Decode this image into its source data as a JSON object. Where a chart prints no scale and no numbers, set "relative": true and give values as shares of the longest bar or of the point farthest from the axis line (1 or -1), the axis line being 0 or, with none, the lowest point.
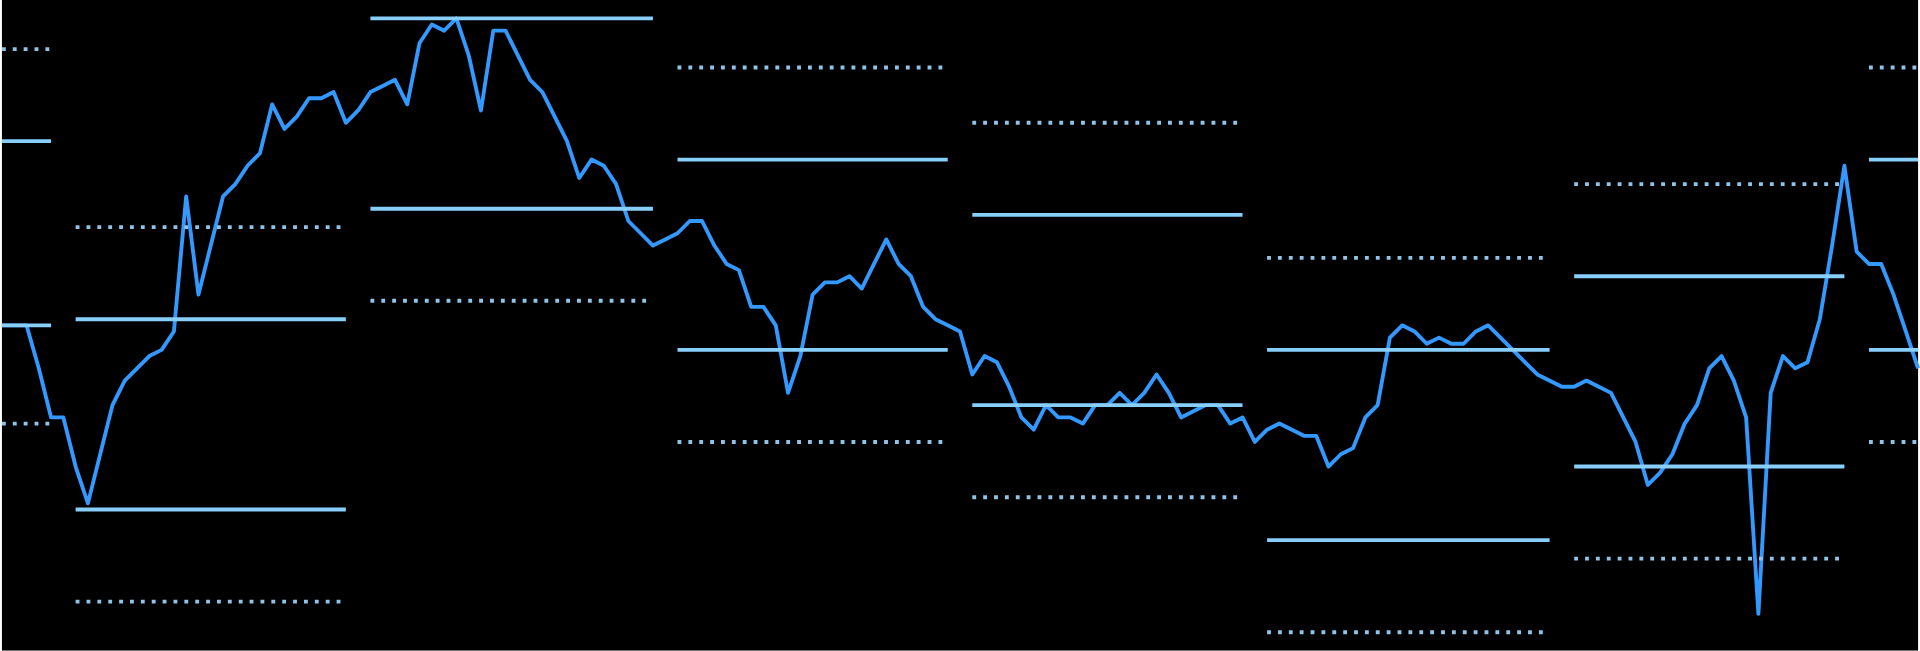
{
  "chart_data": {
    "type": "line",
    "relative": true,
    "categories": [
      null,
      null,
      null,
      null,
      null,
      null,
      null,
      null,
      null,
      null,
      null,
      null,
      null,
      null,
      null,
      null,
      null,
      null,
      null,
      null,
      null,
      null,
      null,
      null,
      null,
      null,
      null,
      null,
      null,
      null,
      null,
      null,
      null,
      null,
      null,
      null,
      null,
      null,
      null,
      null,
      null,
      null,
      null,
      null,
      null,
      null,
      null,
      null,
      null,
      null,
      null,
      null,
      null,
      null,
      null,
      null,
      null,
      null,
      null,
      null,
      null,
      null,
      null,
      null,
      null,
      null,
      null,
      null,
      null,
      null,
      null,
      null,
      null,
      null,
      null,
      null,
      null,
      null,
      null,
      null,
      null,
      null,
      null,
      null,
      null,
      null,
      null,
      null,
      null,
      null,
      null,
      null,
      null,
      null,
      null,
      null,
      null,
      null,
      null,
      null,
      null,
      null,
      null,
      null,
      null,
      null,
      null,
      null,
      null,
      null,
      null,
      null,
      null,
      null,
      null,
      null,
      null,
      null,
      null,
      null,
      null,
      null,
      null,
      null,
      null,
      null,
      null,
      null,
      null,
      null,
      null,
      null,
      null,
      null,
      null,
      null,
      null,
      null,
      null,
      null,
      null,
      null,
      null,
      null,
      null,
      null,
      null,
      null,
      null,
      null,
      null,
      null,
      null,
      null,
      null,
      null,
      null
    ],
    "series": [
      {
        "color": "#3399ff",
        "line_style": "solid",
        "values": [
          0.5,
          0.5,
          0.5,
          0.43,
          0.35,
          0.35,
          0.27,
          0.21,
          0.29,
          0.37,
          0.41,
          0.43,
          0.45,
          0.46,
          0.49,
          0.71,
          0.55,
          0.63,
          0.71,
          0.73,
          0.76,
          0.78,
          0.86,
          0.82,
          0.84,
          0.87,
          0.87,
          0.88,
          0.83,
          0.85,
          0.88,
          0.89,
          0.9,
          0.86,
          0.96,
          0.99,
          0.98,
          1.0,
          0.94,
          0.85,
          0.98,
          0.98,
          0.94,
          0.9,
          0.88,
          0.84,
          0.8,
          0.74,
          0.77,
          0.76,
          0.73,
          0.67,
          0.65,
          0.63,
          0.64,
          0.65,
          0.67,
          0.67,
          0.63,
          0.6,
          0.59,
          0.53,
          0.53,
          0.5,
          0.39,
          0.45,
          0.55,
          0.57,
          0.57,
          0.58,
          0.56,
          0.6,
          0.64,
          0.6,
          0.58,
          0.53,
          0.51,
          0.5,
          0.49,
          0.42,
          0.45,
          0.44,
          0.4,
          0.35,
          0.33,
          0.37,
          0.35,
          0.35,
          0.34,
          0.37,
          0.37,
          0.39,
          0.37,
          0.39,
          0.42,
          0.39,
          0.35,
          0.36,
          0.37,
          0.37,
          0.34,
          0.35,
          0.31,
          0.33,
          0.34,
          0.33,
          0.32,
          0.32,
          0.27,
          0.29,
          0.3,
          0.35,
          0.37,
          0.48,
          0.5,
          0.49,
          0.47,
          0.48,
          0.47,
          0.47,
          0.49,
          0.5,
          0.48,
          0.46,
          0.44,
          0.42,
          0.41,
          0.4,
          0.4,
          0.41,
          0.4,
          0.39,
          0.35,
          0.31,
          0.24,
          0.26,
          0.29,
          0.34,
          0.37,
          0.43,
          0.45,
          0.41,
          0.35,
          0.03,
          0.39,
          0.45,
          0.43,
          0.44,
          0.51,
          0.63,
          0.76,
          0.62,
          0.6,
          0.6,
          0.55,
          0.49,
          0.43
        ]
      },
      {
        "color": "#8fc4e8",
        "line_style": "dotted",
        "values": [
          0.95,
          0.95,
          0.95,
          0.95,
          0.95,
          null,
          0.66,
          0.66,
          0.66,
          0.66,
          0.66,
          0.66,
          0.66,
          0.66,
          0.66,
          0.66,
          0.66,
          0.66,
          0.66,
          0.66,
          0.66,
          0.66,
          0.66,
          0.66,
          0.66,
          0.66,
          0.66,
          0.66,
          0.66,
          null,
          null,
          null,
          null,
          null,
          null,
          null,
          null,
          null,
          null,
          null,
          null,
          null,
          null,
          null,
          null,
          null,
          null,
          null,
          null,
          null,
          null,
          null,
          null,
          null,
          null,
          0.92,
          0.92,
          0.92,
          0.92,
          0.92,
          0.92,
          0.92,
          0.92,
          0.92,
          0.92,
          0.92,
          0.92,
          0.92,
          0.92,
          0.92,
          0.92,
          0.92,
          0.92,
          0.92,
          0.92,
          0.92,
          0.92,
          0.92,
          null,
          0.83,
          0.83,
          0.83,
          0.83,
          0.83,
          0.83,
          0.83,
          0.83,
          0.83,
          0.83,
          0.83,
          0.83,
          0.83,
          0.83,
          0.83,
          0.83,
          0.83,
          0.83,
          0.83,
          0.83,
          0.83,
          0.83,
          0.83,
          null,
          0.61,
          0.61,
          0.61,
          0.61,
          0.61,
          0.61,
          0.61,
          0.61,
          0.61,
          0.61,
          0.61,
          0.61,
          0.61,
          0.61,
          0.61,
          0.61,
          0.61,
          0.61,
          0.61,
          0.61,
          0.61,
          0.61,
          0.61,
          0.61,
          null,
          0.73,
          0.73,
          0.73,
          0.73,
          0.73,
          0.73,
          0.73,
          0.73,
          0.73,
          0.73,
          0.73,
          0.73,
          0.73,
          0.73,
          0.73,
          0.73,
          0.73,
          0.73,
          0.73,
          0.73,
          0.73,
          0.73,
          0.73,
          null,
          0.92,
          0.92,
          0.92,
          0.92,
          0.92
        ]
      },
      {
        "color": "#87cefa",
        "line_style": "solid",
        "values": [
          0.8,
          0.8,
          0.8,
          0.8,
          0.8,
          null,
          0.51,
          0.51,
          0.51,
          0.51,
          0.51,
          0.51,
          0.51,
          0.51,
          0.51,
          0.51,
          0.51,
          0.51,
          0.51,
          0.51,
          0.51,
          0.51,
          0.51,
          0.51,
          0.51,
          0.51,
          0.51,
          0.51,
          0.51,
          null,
          1.0,
          1.0,
          1.0,
          1.0,
          1.0,
          1.0,
          1.0,
          1.0,
          1.0,
          1.0,
          1.0,
          1.0,
          1.0,
          1.0,
          1.0,
          1.0,
          1.0,
          1.0,
          1.0,
          1.0,
          1.0,
          1.0,
          1.0,
          1.0,
          null,
          0.77,
          0.77,
          0.77,
          0.77,
          0.77,
          0.77,
          0.77,
          0.77,
          0.77,
          0.77,
          0.77,
          0.77,
          0.77,
          0.77,
          0.77,
          0.77,
          0.77,
          0.77,
          0.77,
          0.77,
          0.77,
          0.77,
          0.77,
          null,
          0.68,
          0.68,
          0.68,
          0.68,
          0.68,
          0.68,
          0.68,
          0.68,
          0.68,
          0.68,
          0.68,
          0.68,
          0.68,
          0.68,
          0.68,
          0.68,
          0.68,
          0.68,
          0.68,
          0.68,
          0.68,
          0.68,
          0.68,
          null,
          0.46,
          0.46,
          0.46,
          0.46,
          0.46,
          0.46,
          0.46,
          0.46,
          0.46,
          0.46,
          0.46,
          0.46,
          0.46,
          0.46,
          0.46,
          0.46,
          0.46,
          0.46,
          0.46,
          0.46,
          0.46,
          0.46,
          0.46,
          0.46,
          null,
          0.58,
          0.58,
          0.58,
          0.58,
          0.58,
          0.58,
          0.58,
          0.58,
          0.58,
          0.58,
          0.58,
          0.58,
          0.58,
          0.58,
          0.58,
          0.58,
          0.58,
          0.58,
          0.58,
          0.58,
          0.58,
          0.58,
          0.58,
          null,
          0.77,
          0.77,
          0.77,
          0.77,
          0.77
        ]
      },
      {
        "color": "#87cefa",
        "line_style": "solid",
        "values": [
          0.5,
          0.5,
          0.5,
          0.5,
          0.5,
          null,
          0.2,
          0.2,
          0.2,
          0.2,
          0.2,
          0.2,
          0.2,
          0.2,
          0.2,
          0.2,
          0.2,
          0.2,
          0.2,
          0.2,
          0.2,
          0.2,
          0.2,
          0.2,
          0.2,
          0.2,
          0.2,
          0.2,
          0.2,
          null,
          0.69,
          0.69,
          0.69,
          0.69,
          0.69,
          0.69,
          0.69,
          0.69,
          0.69,
          0.69,
          0.69,
          0.69,
          0.69,
          0.69,
          0.69,
          0.69,
          0.69,
          0.69,
          0.69,
          0.69,
          0.69,
          0.69,
          0.69,
          0.69,
          null,
          0.46,
          0.46,
          0.46,
          0.46,
          0.46,
          0.46,
          0.46,
          0.46,
          0.46,
          0.46,
          0.46,
          0.46,
          0.46,
          0.46,
          0.46,
          0.46,
          0.46,
          0.46,
          0.46,
          0.46,
          0.46,
          0.46,
          0.46,
          null,
          0.37,
          0.37,
          0.37,
          0.37,
          0.37,
          0.37,
          0.37,
          0.37,
          0.37,
          0.37,
          0.37,
          0.37,
          0.37,
          0.37,
          0.37,
          0.37,
          0.37,
          0.37,
          0.37,
          0.37,
          0.37,
          0.37,
          0.37,
          null,
          0.15,
          0.15,
          0.15,
          0.15,
          0.15,
          0.15,
          0.15,
          0.15,
          0.15,
          0.15,
          0.15,
          0.15,
          0.15,
          0.15,
          0.15,
          0.15,
          0.15,
          0.15,
          0.15,
          0.15,
          0.15,
          0.15,
          0.15,
          0.15,
          null,
          0.27,
          0.27,
          0.27,
          0.27,
          0.27,
          0.27,
          0.27,
          0.27,
          0.27,
          0.27,
          0.27,
          0.27,
          0.27,
          0.27,
          0.27,
          0.27,
          0.27,
          0.27,
          0.27,
          0.27,
          0.27,
          0.27,
          0.27,
          null,
          0.46,
          0.46,
          0.46,
          0.46,
          0.46
        ]
      },
      {
        "color": "#8fc4e8",
        "line_style": "dotted",
        "values": [
          0.34,
          0.34,
          0.34,
          0.34,
          0.34,
          null,
          0.05,
          0.05,
          0.05,
          0.05,
          0.05,
          0.05,
          0.05,
          0.05,
          0.05,
          0.05,
          0.05,
          0.05,
          0.05,
          0.05,
          0.05,
          0.05,
          0.05,
          0.05,
          0.05,
          0.05,
          0.05,
          0.05,
          0.05,
          null,
          0.54,
          0.54,
          0.54,
          0.54,
          0.54,
          0.54,
          0.54,
          0.54,
          0.54,
          0.54,
          0.54,
          0.54,
          0.54,
          0.54,
          0.54,
          0.54,
          0.54,
          0.54,
          0.54,
          0.54,
          0.54,
          0.54,
          0.54,
          0.54,
          null,
          0.31,
          0.31,
          0.31,
          0.31,
          0.31,
          0.31,
          0.31,
          0.31,
          0.31,
          0.31,
          0.31,
          0.31,
          0.31,
          0.31,
          0.31,
          0.31,
          0.31,
          0.31,
          0.31,
          0.31,
          0.31,
          0.31,
          0.31,
          null,
          0.22,
          0.22,
          0.22,
          0.22,
          0.22,
          0.22,
          0.22,
          0.22,
          0.22,
          0.22,
          0.22,
          0.22,
          0.22,
          0.22,
          0.22,
          0.22,
          0.22,
          0.22,
          0.22,
          0.22,
          0.22,
          0.22,
          0.22,
          null,
          0.0,
          0.0,
          0.0,
          0.0,
          0.0,
          0.0,
          0.0,
          0.0,
          0.0,
          0.0,
          0.0,
          0.0,
          0.0,
          0.0,
          0.0,
          0.0,
          0.0,
          0.0,
          0.0,
          0.0,
          0.0,
          0.0,
          0.0,
          0.0,
          null,
          0.12,
          0.12,
          0.12,
          0.12,
          0.12,
          0.12,
          0.12,
          0.12,
          0.12,
          0.12,
          0.12,
          0.12,
          0.12,
          0.12,
          0.12,
          0.12,
          0.12,
          0.12,
          0.12,
          0.12,
          0.12,
          0.12,
          0.12,
          null,
          0.31,
          0.31,
          0.31,
          0.31,
          0.31
        ]
      }
    ]
  }
}
